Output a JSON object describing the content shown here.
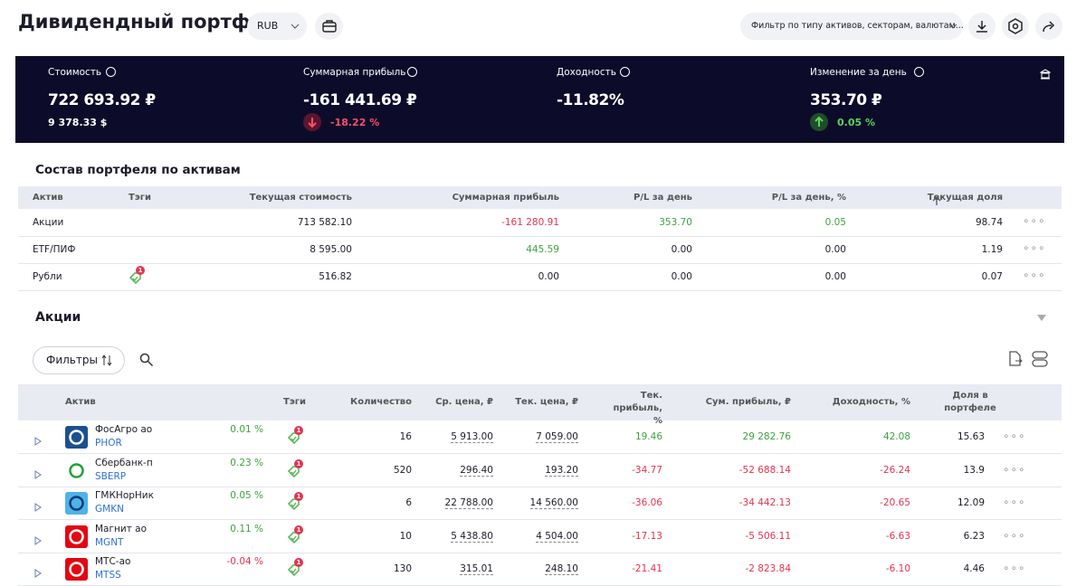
{
  "header": {
    "title": "Дивидендный портфель",
    "currency": "RUB",
    "filter": "Фильтр по типу активов, секторам, валютам..."
  },
  "summary": [
    {
      "label": "Стоимость",
      "value": "722 693.92 ₽",
      "sub": "9 378.33 $"
    },
    {
      "label": "Суммарная прибыль",
      "value": "-161 441.69 ₽",
      "sub": "-18.22 %"
    },
    {
      "label": "Доходность",
      "value": "-11.82%"
    },
    {
      "label": "Изменение за день",
      "value": "353.70 ₽",
      "sub": "0.05 %"
    }
  ],
  "assets": {
    "title": "Состав портфеля по активам",
    "columns": [
      "Актив",
      "Тэги",
      "Текущая стоимость",
      "Суммарная прибыль",
      "P/L за день",
      "P/L за день, %",
      "Текущая доля"
    ],
    "rows": [
      {
        "name": "Акции",
        "value": "713 582.10",
        "pl": "-161 280.91",
        "pl_day": "353.70",
        "pl_day_pct": "0.05",
        "share": "98.74"
      },
      {
        "name": "ETF/ПИФ",
        "value": "8 595.00",
        "pl": "445.59",
        "pl_day": "0.00",
        "pl_day_pct": "0.00",
        "share": "1.19"
      },
      {
        "name": "Рубли",
        "tag": "1",
        "value": "516.82",
        "pl": "0.00",
        "pl_day": "0.00",
        "pl_day_pct": "0.00",
        "share": "0.07"
      }
    ]
  },
  "stocks": {
    "title": "Акции",
    "filter_button": "Фильтры",
    "columns": [
      "Актив",
      "Тэги",
      "Количество",
      "Ср. цена, ₽",
      "Тек. цена, ₽",
      "Тек. прибыль, %",
      "Сум. прибыль, ₽",
      "Доходность, %",
      "Доля в портфеле"
    ],
    "rows": [
      {
        "name": "ФосАгро ао",
        "ticker": "PHOR",
        "change": "0.01 %",
        "tag": "1",
        "qty": "16",
        "avg": "5 913.00",
        "price": "7 059.00",
        "pl_pct": "19.46",
        "pl": "29 282.76",
        "yield": "42.08",
        "share": "15.63"
      },
      {
        "name": "Сбербанк-п",
        "ticker": "SBERP",
        "change": "0.23 %",
        "tag": "1",
        "qty": "520",
        "avg": "296.40",
        "price": "193.20",
        "pl_pct": "-34.77",
        "pl": "-52 688.14",
        "yield": "-26.24",
        "share": "13.9"
      },
      {
        "name": "ГМКНорНик",
        "ticker": "GMKN",
        "change": "0.05 %",
        "tag": "1",
        "qty": "6",
        "avg": "22 788.00",
        "price": "14 560.00",
        "pl_pct": "-36.06",
        "pl": "-34 442.13",
        "yield": "-20.65",
        "share": "12.09"
      },
      {
        "name": "Магнит ао",
        "ticker": "MGNT",
        "change": "0.11 %",
        "tag": "1",
        "qty": "10",
        "avg": "5 438.80",
        "price": "4 504.00",
        "pl_pct": "-17.13",
        "pl": "-5 506.11",
        "yield": "-6.63",
        "share": "6.23"
      },
      {
        "name": "МТС-ао",
        "ticker": "MTSS",
        "change": "-0.04 %",
        "tag": "1",
        "qty": "130",
        "avg": "315.01",
        "price": "248.10",
        "pl_pct": "-21.41",
        "pl": "-2 823.84",
        "yield": "-6.10",
        "share": "4.46"
      }
    ]
  }
}
